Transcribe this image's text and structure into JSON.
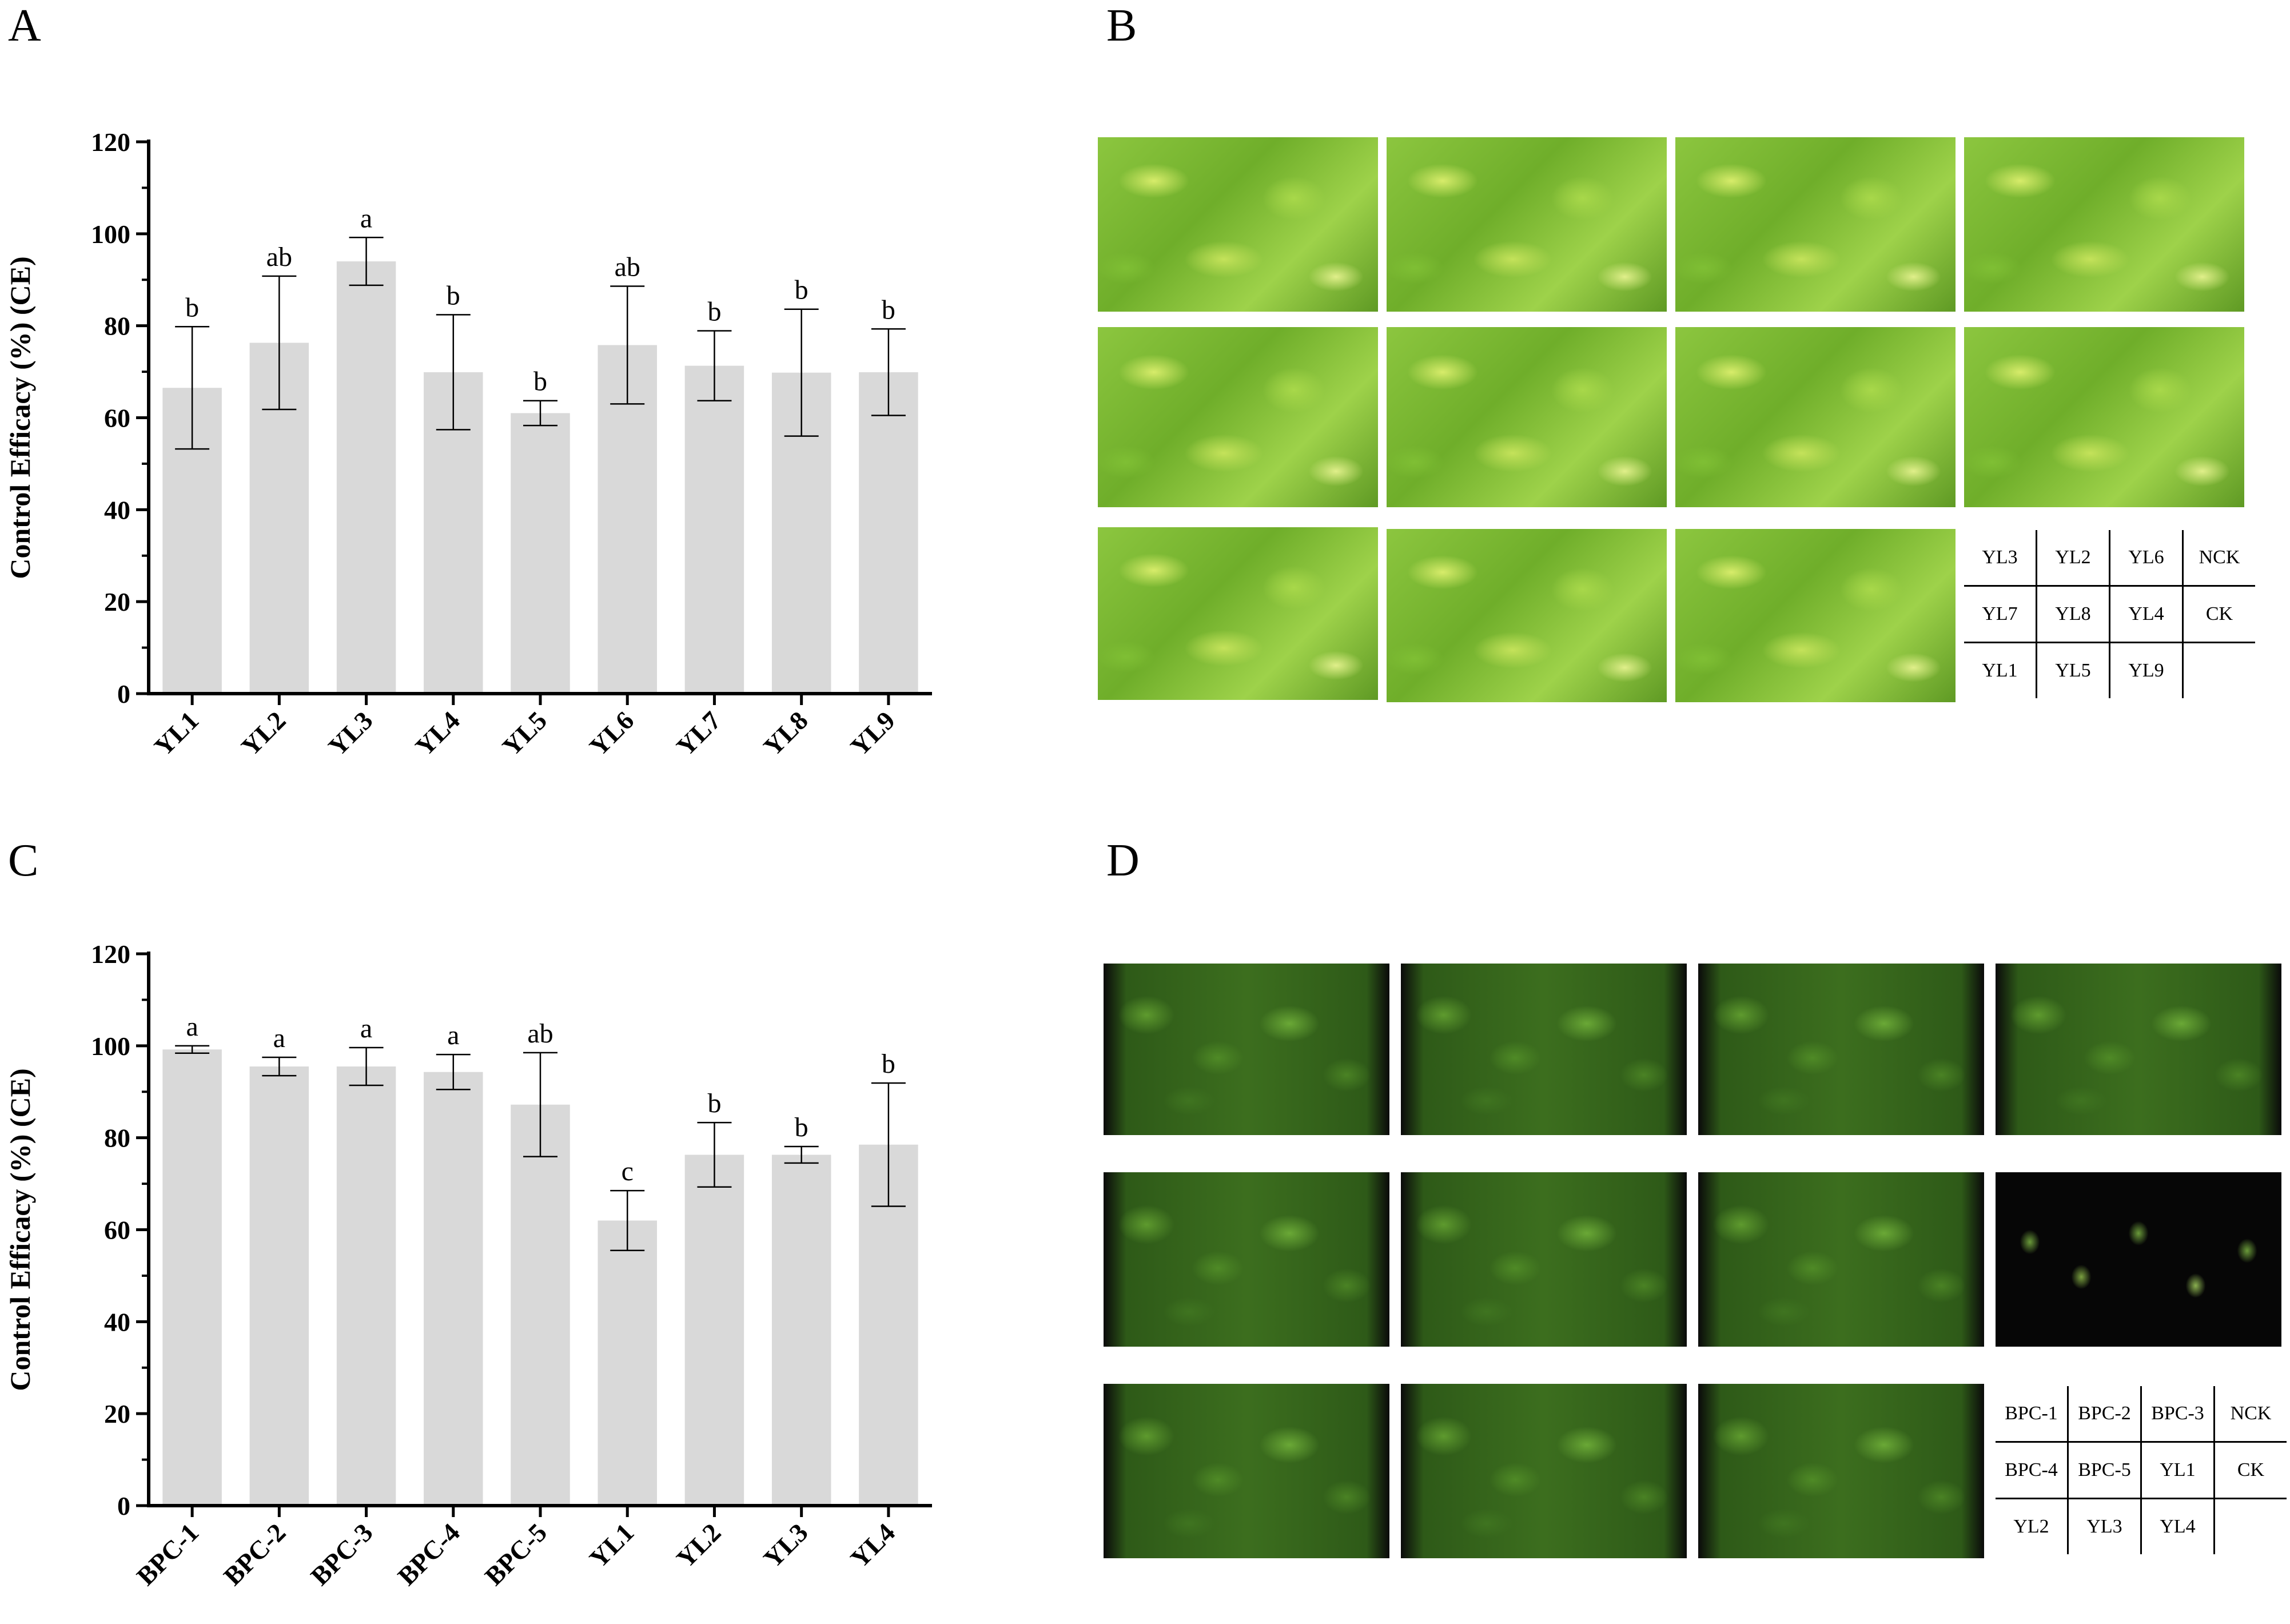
{
  "panels": {
    "A": "A",
    "B": "B",
    "C": "C",
    "D": "D"
  },
  "chart_data": [
    {
      "type": "bar",
      "panel": "A",
      "categories": [
        "YL1",
        "YL2",
        "YL3",
        "YL4",
        "YL5",
        "YL6",
        "YL7",
        "YL8",
        "YL9"
      ],
      "values": [
        66.5,
        76.3,
        94.0,
        69.9,
        61.0,
        75.8,
        71.3,
        69.8,
        69.9
      ],
      "errors": [
        13.3,
        14.5,
        5.2,
        12.5,
        2.7,
        12.8,
        7.6,
        13.8,
        9.4
      ],
      "significance": [
        "b",
        "ab",
        "a",
        "b",
        "b",
        "ab",
        "b",
        "b",
        "b"
      ],
      "ylabel": "Control Efficacy (%) (CE)",
      "ylim": [
        0,
        120
      ],
      "yticks": [
        0,
        20,
        40,
        60,
        80,
        100,
        120
      ],
      "bar_color": "#d9d9d9"
    },
    {
      "type": "bar",
      "panel": "C",
      "categories": [
        "BPC-1",
        "BPC-2",
        "BPC-3",
        "BPC-4",
        "BPC-5",
        "YL1",
        "YL2",
        "YL3",
        "YL4"
      ],
      "values": [
        99.2,
        95.5,
        95.5,
        94.3,
        87.2,
        62.0,
        76.3,
        76.3,
        78.5
      ],
      "errors": [
        0.8,
        2.0,
        4.1,
        3.8,
        11.3,
        6.5,
        7.0,
        1.8,
        13.4
      ],
      "significance": [
        "a",
        "a",
        "a",
        "a",
        "ab",
        "c",
        "b",
        "b",
        "b"
      ],
      "ylabel": "Control Efficacy (%) (CE)",
      "ylim": [
        0,
        120
      ],
      "yticks": [
        0,
        20,
        40,
        60,
        80,
        100,
        120
      ],
      "bar_color": "#d9d9d9"
    }
  ],
  "legend_B": [
    [
      "YL3",
      "YL2",
      "YL6",
      "NCK"
    ],
    [
      "YL7",
      "YL8",
      "YL4",
      "CK"
    ],
    [
      "YL1",
      "YL5",
      "YL9",
      ""
    ]
  ],
  "legend_D": [
    [
      "BPC-1",
      "BPC-2",
      "BPC-3",
      "NCK"
    ],
    [
      "BPC-4",
      "BPC-5",
      "YL1",
      "CK"
    ],
    [
      "YL2",
      "YL3",
      "YL4",
      ""
    ]
  ]
}
